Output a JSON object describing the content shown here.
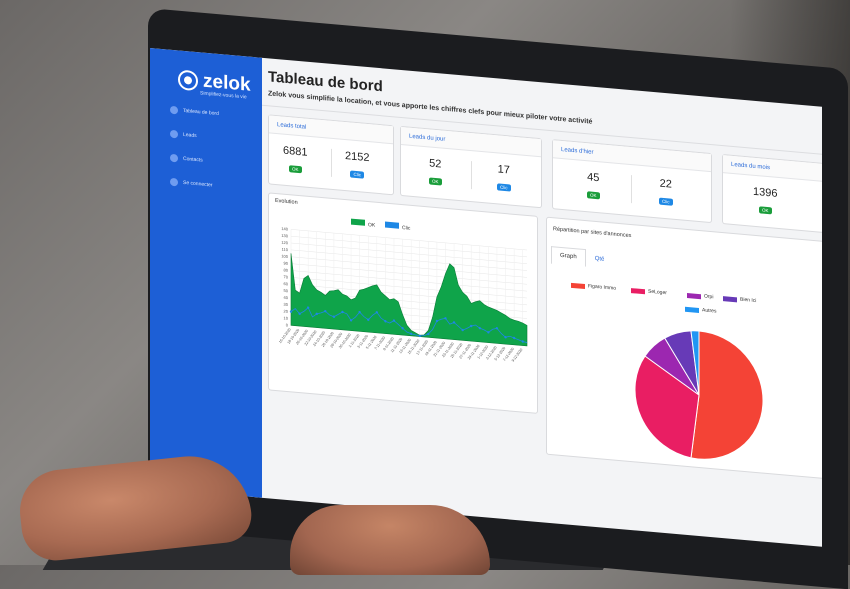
{
  "sidebar": {
    "logo_text": "zelok",
    "logo_tagline": "Simplifiez-vous la vie",
    "items": [
      {
        "label": "Tableau de bord"
      },
      {
        "label": "Leads"
      },
      {
        "label": "Contacts"
      },
      {
        "label": "Se connecter"
      }
    ]
  },
  "header": {
    "title": "Tableau de bord",
    "subtitle": "Zelok vous simplifie la location, et vous apporte les chiffres clefs pour mieux piloter votre activité"
  },
  "stats": [
    {
      "title": "Leads total",
      "ok_value": "6881",
      "ok_label": "OK",
      "clic_value": "2152",
      "clic_label": "Clic"
    },
    {
      "title": "Leads du jour",
      "ok_value": "52",
      "ok_label": "OK",
      "clic_value": "17",
      "clic_label": "Clic"
    },
    {
      "title": "Leads d'hier",
      "ok_value": "45",
      "ok_label": "OK",
      "clic_value": "22",
      "clic_label": "Clic"
    },
    {
      "title": "Leads du mois",
      "ok_value": "1396",
      "ok_label": "OK"
    }
  ],
  "evolution": {
    "title": "Evolution",
    "legend_ok": "OK",
    "legend_clic": "Clic",
    "colors": {
      "ok": "#0fa44a",
      "clic": "#1e88e5"
    }
  },
  "repartition": {
    "title": "Répartition par sites d'annonces",
    "tab_graph": "Graph",
    "tab_qte": "Qté",
    "legend": [
      {
        "label": "Figaro Immo",
        "color": "#f44336"
      },
      {
        "label": "SeLoger",
        "color": "#e91e63"
      },
      {
        "label": "Orpi",
        "color": "#9c27b0"
      },
      {
        "label": "Bien Ici",
        "color": "#673ab7"
      },
      {
        "label": "Autres",
        "color": "#2196f3"
      }
    ]
  },
  "chart_data": [
    {
      "type": "area",
      "title": "Evolution",
      "ylim": [
        0,
        140
      ],
      "y_ticks": [
        "0",
        "10",
        "20",
        "30",
        "40",
        "50",
        "60",
        "70",
        "80",
        "90",
        "100",
        "110",
        "120",
        "130",
        "140"
      ],
      "x": [
        "16-10-2020",
        "17-10-2020",
        "18-10-2020",
        "19-10-2020",
        "20-10-2020",
        "21-10-2020",
        "22-10-2020",
        "23-10-2020",
        "24-10-2020",
        "25-10-2020",
        "26-10-2020",
        "27-10-2020",
        "28-10-2020",
        "29-10-2020",
        "30-10-2020",
        "31-10-2020",
        "1-11-2020",
        "2-11-2020",
        "3-11-2020",
        "4-11-2020",
        "5-11-2020",
        "6-11-2020",
        "7-11-2020",
        "8-11-2020",
        "9-11-2020",
        "10-11-2020",
        "11-11-2020",
        "12-11-2020",
        "13-11-2020",
        "14-11-2020",
        "15-11-2020",
        "16-11-2020",
        "17-11-2020",
        "18-11-2020",
        "19-11-2020",
        "20-11-2020",
        "21-11-2020",
        "22-11-2020",
        "23-11-2020",
        "24-11-2020",
        "25-11-2020",
        "26-11-2020",
        "27-11-2020",
        "28-11-2020",
        "29-11-2020",
        "30-11-2020",
        "1-12-2020",
        "2-12-2020",
        "3-12-2020",
        "4-12-2020",
        "5-12-2020",
        "6-12-2020",
        "7-12-2020",
        "8-12-2020",
        "9-12-2020",
        "10-12-2020"
      ],
      "series": [
        {
          "name": "OK",
          "values": [
            105,
            52,
            48,
            70,
            75,
            62,
            55,
            52,
            48,
            55,
            56,
            58,
            52,
            50,
            45,
            48,
            60,
            62,
            65,
            68,
            70,
            60,
            55,
            50,
            52,
            48,
            30,
            15,
            8,
            5,
            2,
            3,
            10,
            30,
            60,
            75,
            95,
            110,
            105,
            80,
            70,
            65,
            55,
            58,
            60,
            55,
            52,
            50,
            48,
            45,
            42,
            38,
            36,
            35,
            33,
            30
          ]
        },
        {
          "name": "Clic",
          "values": [
            20,
            25,
            18,
            22,
            28,
            15,
            20,
            22,
            25,
            20,
            18,
            22,
            26,
            24,
            15,
            20,
            28,
            22,
            18,
            25,
            30,
            22,
            18,
            16,
            20,
            15,
            10,
            5,
            3,
            2,
            1,
            2,
            5,
            12,
            25,
            28,
            30,
            22,
            25,
            20,
            15,
            18,
            22,
            24,
            20,
            18,
            15,
            20,
            22,
            15,
            10,
            12,
            10,
            8,
            6,
            5
          ]
        }
      ]
    },
    {
      "type": "pie",
      "title": "Répartition par sites d'annonces",
      "categories": [
        "Figaro Immo",
        "SeLoger",
        "Orpi",
        "Bien Ici",
        "Autres"
      ],
      "values": [
        52,
        32,
        7,
        7,
        2
      ]
    }
  ]
}
